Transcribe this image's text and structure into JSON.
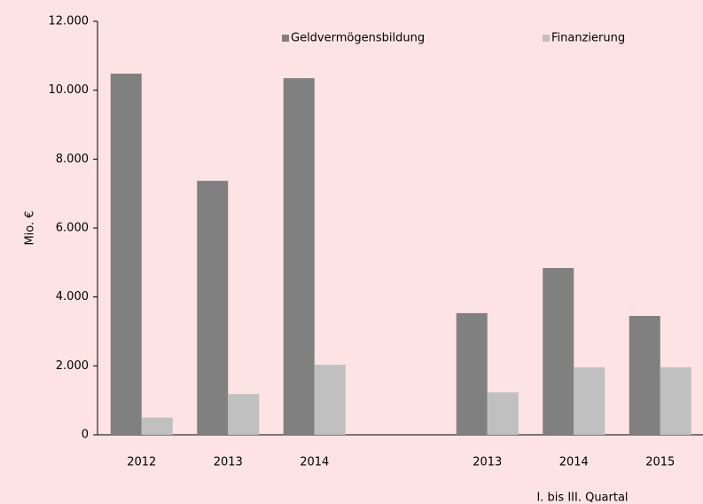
{
  "chart_data": {
    "type": "bar",
    "categories": [
      "2012",
      "2013",
      "2014",
      null,
      "2013",
      "2014",
      "2015"
    ],
    "series": [
      {
        "name": "Geldvermögensbildung",
        "color": "#808080",
        "values": [
          10480,
          7370,
          10350,
          null,
          3530,
          4840,
          3450
        ]
      },
      {
        "name": "Finanzierung",
        "color": "#c0c0c0",
        "values": [
          500,
          1180,
          2030,
          null,
          1230,
          1960,
          1960
        ]
      }
    ],
    "y_label": "Mio. €",
    "annotation": "I. bis III. Quartal",
    "ylim": [
      0,
      12000
    ],
    "yticks": [
      0,
      {
        "value": 2000,
        "label": "2.000"
      },
      {
        "value": 4000,
        "label": "4.000"
      },
      {
        "value": 6000,
        "label": "6.000"
      },
      {
        "value": 8000,
        "label": "8.000"
      },
      {
        "value": 10000,
        "label": "10.000"
      },
      {
        "value": 12000,
        "label": "12.000"
      }
    ],
    "legend": "top",
    "grid": false
  }
}
